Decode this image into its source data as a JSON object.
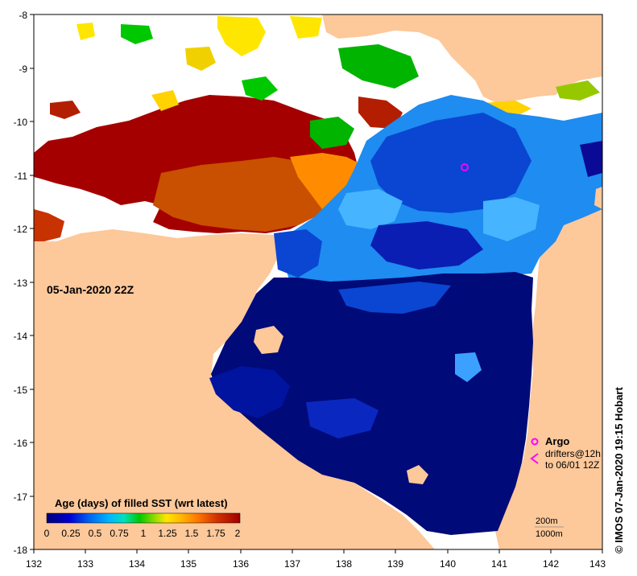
{
  "map": {
    "date_label": "05-Jan-2020 22Z",
    "colorbar_title": "Age (days) of filled SST (wrt latest)",
    "colorbar_ticks": [
      "0",
      "0.25",
      "0.5",
      "0.75",
      "1",
      "1.25",
      "1.5",
      "1.75",
      "2"
    ],
    "colorbar_colors": [
      "#00007a",
      "#0000c8",
      "#0050e6",
      "#0096ff",
      "#00d2ff",
      "#00e0a0",
      "#00c800",
      "#96dc00",
      "#ffe600",
      "#ffb400",
      "#ff7800",
      "#d23200",
      "#a00000"
    ],
    "lon_labels": [
      "132",
      "133",
      "134",
      "135",
      "136",
      "137",
      "138",
      "139",
      "140",
      "141",
      "142",
      "143"
    ],
    "lat_labels": [
      "-8",
      "-9",
      "-10",
      "-11",
      "-12",
      "-13",
      "-14",
      "-15",
      "-16",
      "-17",
      "-18"
    ],
    "legend": {
      "argo_label": "Argo",
      "drifters_label_1": "drifters@12h",
      "drifters_label_2": "to 06/01 12Z",
      "contour_200": "200m",
      "contour_1000": "1000m"
    },
    "credit": "© IMOS 07-Jan-2020 19:15 Hobart",
    "colors": {
      "land": "#fdc89a",
      "no_data": "#ffffff",
      "argo_marker": "#ff00ff"
    }
  }
}
